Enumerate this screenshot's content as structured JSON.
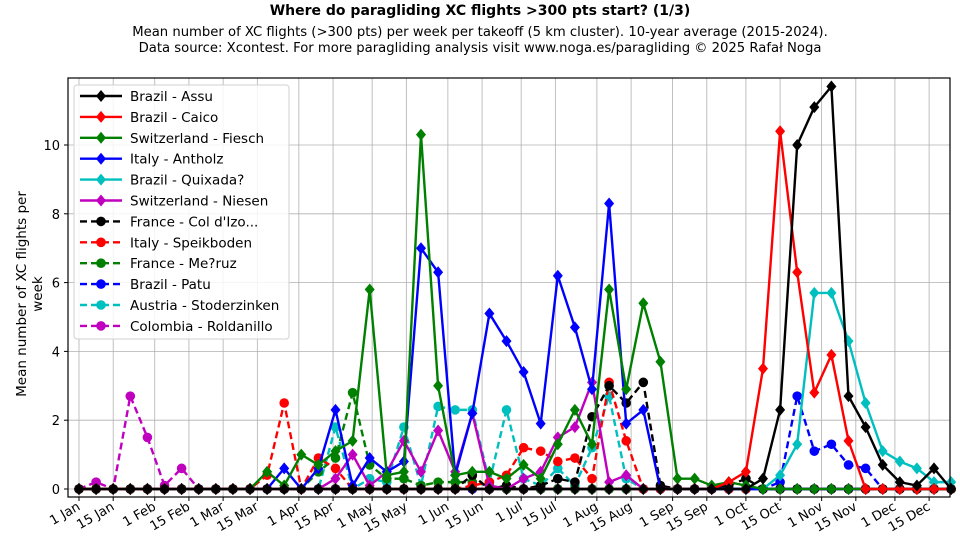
{
  "header": {
    "title": "Where do paragliding XC flights >300 pts start? (1/3)",
    "subtitle1": "Mean number of XC flights (>300 pts) per week per takeoff (5 km cluster). 10-year average (2015-2024).",
    "subtitle2": "Data source: Xcontest. For more paragliding analysis visit www.noga.es/paragliding © 2025 Rafał Noga"
  },
  "chart_data": {
    "type": "line",
    "title": "Where do paragliding XC flights >300 pts start? (1/3)",
    "xlabel": "",
    "ylabel": "Mean number of XC flights per week",
    "ylim": [
      -0.3,
      11.9
    ],
    "yticks": [
      0,
      2,
      4,
      6,
      8,
      10
    ],
    "xtick_labels": [
      "1 Jan",
      "15 Jan",
      "1 Feb",
      "15 Feb",
      "1 Mar",
      "15 Mar",
      "1 Apr",
      "15 Apr",
      "1 May",
      "15 May",
      "1 Jun",
      "15 Jun",
      "1 Jul",
      "15 Jul",
      "1 Aug",
      "15 Aug",
      "1 Sep",
      "15 Sep",
      "1 Oct",
      "15 Oct",
      "1 Nov",
      "15 Nov",
      "1 Dec",
      "15 Dec"
    ],
    "xtick_days": [
      0,
      14,
      31,
      45,
      59,
      73,
      90,
      104,
      120,
      134,
      151,
      165,
      181,
      195,
      212,
      226,
      243,
      257,
      273,
      287,
      304,
      318,
      334,
      348
    ],
    "grid": true,
    "legend_position": "upper left",
    "x_weeks": 52,
    "series": [
      {
        "name": "Brazil - Assu",
        "color": "#000000",
        "style": "solid",
        "marker": "diamond",
        "values": [
          0,
          0,
          0,
          0,
          0,
          0,
          0,
          0,
          0,
          0,
          0,
          0,
          0,
          0,
          0,
          0,
          0,
          0,
          0,
          0,
          0,
          0,
          0,
          0,
          0,
          0,
          0,
          0,
          0,
          0,
          0,
          0,
          0,
          0,
          0,
          0,
          0,
          0,
          0,
          0,
          0.3,
          2.3,
          10.0,
          11.1,
          11.7,
          2.7,
          1.8,
          0.7,
          0.2,
          0.1,
          0.6,
          0.0
        ]
      },
      {
        "name": "Brazil - Caico",
        "color": "#ff0000",
        "style": "solid",
        "marker": "diamond",
        "values": [
          0,
          0,
          0,
          0,
          0,
          0,
          0,
          0,
          0,
          0,
          0,
          0,
          0,
          0,
          0,
          0,
          0,
          0,
          0,
          0,
          0,
          0,
          0,
          0,
          0,
          0,
          0,
          0,
          0,
          0,
          0,
          0,
          0,
          0,
          0,
          0,
          0,
          0,
          0.2,
          0.5,
          3.5,
          10.4,
          6.3,
          2.8,
          3.9,
          1.4,
          0,
          0,
          0,
          0,
          0,
          0
        ]
      },
      {
        "name": "Switzerland - Fiesch",
        "color": "#008000",
        "style": "solid",
        "marker": "diamond",
        "values": [
          0,
          0,
          0,
          0,
          0,
          0,
          0,
          0,
          0,
          0,
          0,
          0.5,
          0.1,
          1.0,
          0.7,
          1.1,
          1.4,
          5.8,
          0.4,
          0.5,
          10.3,
          3.0,
          0.4,
          0.5,
          0.5,
          0.3,
          0.7,
          0.3,
          1.3,
          2.3,
          1.3,
          5.8,
          2.9,
          5.4,
          3.7,
          0.3,
          0.3,
          0.1,
          0.2,
          0.1,
          0,
          0,
          0,
          0,
          0,
          0,
          0,
          0,
          0,
          0,
          0,
          0
        ]
      },
      {
        "name": "Italy - Antholz",
        "color": "#0000ff",
        "style": "solid",
        "marker": "diamond",
        "values": [
          0,
          0,
          0,
          0,
          0,
          0,
          0,
          0,
          0,
          0,
          0,
          0,
          0.6,
          0,
          0.6,
          2.3,
          0.1,
          0.9,
          0.5,
          0.8,
          7.0,
          6.3,
          0.4,
          2.2,
          5.1,
          4.3,
          3.4,
          1.9,
          6.2,
          4.7,
          2.9,
          8.3,
          1.9,
          2.3,
          0,
          0,
          0,
          0,
          0,
          0,
          0,
          0,
          0,
          0,
          0,
          0,
          0,
          0,
          0,
          0,
          0,
          0
        ]
      },
      {
        "name": "Brazil - Quixada?",
        "color": "#00bfbf",
        "style": "solid",
        "marker": "diamond",
        "values": [
          0,
          0,
          0,
          0,
          0,
          0,
          0,
          0,
          0,
          0,
          0,
          0,
          0,
          0,
          0,
          0,
          0,
          0,
          0,
          0,
          0,
          0,
          0,
          0,
          0,
          0,
          0,
          0,
          0,
          0,
          0,
          0,
          0,
          0,
          0,
          0,
          0,
          0,
          0,
          0,
          0,
          0.4,
          1.3,
          5.7,
          5.7,
          4.3,
          2.5,
          1.1,
          0.8,
          0.6,
          0.2,
          0.2
        ]
      },
      {
        "name": "Switzerland - Niesen",
        "color": "#bf00bf",
        "style": "solid",
        "marker": "diamond",
        "values": [
          0,
          0,
          0,
          0,
          0,
          0,
          0,
          0,
          0,
          0,
          0,
          0,
          0,
          0,
          0,
          0.3,
          1.0,
          0.1,
          0.5,
          1.4,
          0.5,
          1.7,
          0.5,
          2.2,
          0.1,
          0,
          0.3,
          0.5,
          1.5,
          1.8,
          3.1,
          0.2,
          0.4,
          0,
          0,
          0,
          0,
          0,
          0,
          0,
          0,
          0,
          0,
          0,
          0,
          0,
          0,
          0,
          0,
          0,
          0,
          0
        ]
      },
      {
        "name": "France - Col d'Izo...",
        "color": "#000000",
        "style": "dashed",
        "marker": "circle",
        "values": [
          0,
          0,
          0,
          0,
          0,
          0,
          0,
          0,
          0,
          0,
          0,
          0,
          0,
          0,
          0,
          0,
          0,
          0,
          0,
          0,
          0,
          0,
          0,
          0.4,
          0,
          0.1,
          0,
          0.1,
          0.3,
          0.2,
          2.1,
          3.0,
          2.5,
          3.1,
          0.1,
          0,
          0,
          0,
          0.1,
          0.3,
          0,
          0,
          0,
          0,
          0,
          0,
          0,
          0,
          0,
          0,
          0,
          0
        ]
      },
      {
        "name": "Italy - Speikboden",
        "color": "#ff0000",
        "style": "dashed",
        "marker": "circle",
        "values": [
          0,
          0,
          0,
          0,
          0,
          0,
          0,
          0,
          0,
          0,
          0,
          0.4,
          2.5,
          0,
          0.9,
          0.6,
          0,
          0,
          0,
          0,
          0,
          0,
          0,
          0.1,
          0.2,
          0.4,
          1.2,
          1.1,
          0.8,
          0.9,
          0.3,
          3.1,
          1.4,
          0,
          0,
          0,
          0,
          0,
          0,
          0,
          0,
          0,
          0,
          0,
          0,
          0,
          0,
          0,
          0,
          0,
          0,
          0
        ]
      },
      {
        "name": "France - Me?ruz",
        "color": "#008000",
        "style": "dashed",
        "marker": "circle",
        "values": [
          0,
          0,
          0,
          0,
          0,
          0,
          0,
          0,
          0,
          0,
          0,
          0,
          0,
          0,
          0.5,
          0.9,
          2.8,
          0.7,
          0.3,
          0.3,
          0.1,
          0.2,
          0.2,
          0.2,
          0.1,
          0,
          0,
          0,
          0,
          0,
          0,
          0,
          0,
          0,
          0,
          0,
          0,
          0,
          0,
          0,
          0,
          0,
          0,
          0,
          0,
          0,
          0,
          0,
          0,
          0,
          0,
          0
        ]
      },
      {
        "name": "Brazil - Patu",
        "color": "#0000ff",
        "style": "dashed",
        "marker": "circle",
        "values": [
          0,
          0,
          0,
          0,
          0,
          0,
          0,
          0,
          0,
          0,
          0,
          0,
          0,
          0,
          0,
          0,
          0,
          0,
          0,
          0,
          0,
          0,
          0,
          0,
          0,
          0,
          0,
          0,
          0,
          0,
          0,
          0,
          0,
          0,
          0,
          0,
          0,
          0,
          0,
          0,
          0,
          0.2,
          2.7,
          1.1,
          1.3,
          0.7,
          0.6,
          0,
          0,
          0,
          0,
          0
        ]
      },
      {
        "name": "Austria - Stoderzinken",
        "color": "#00bfbf",
        "style": "dashed",
        "marker": "circle",
        "values": [
          0,
          0,
          0,
          0,
          0,
          0,
          0,
          0,
          0,
          0,
          0,
          0,
          0,
          0,
          0,
          1.8,
          0,
          0.3,
          0.2,
          1.8,
          0.1,
          2.4,
          2.3,
          2.3,
          0.2,
          2.3,
          0.3,
          0.1,
          0.6,
          0.1,
          1.2,
          2.7,
          0.3,
          0,
          0,
          0,
          0,
          0,
          0,
          0,
          0,
          0,
          0,
          0,
          0,
          0,
          0,
          0,
          0,
          0,
          0,
          0
        ]
      },
      {
        "name": "Colombia - Roldanillo",
        "color": "#bf00bf",
        "style": "dashed",
        "marker": "circle",
        "values": [
          0,
          0.2,
          0,
          2.7,
          1.5,
          0.1,
          0.6,
          0,
          0,
          0,
          0,
          0,
          0,
          0,
          0,
          0,
          0,
          0,
          0,
          0,
          0,
          0,
          0,
          0,
          0,
          0,
          0,
          0,
          0,
          0,
          0,
          0,
          0,
          0,
          0,
          0,
          0,
          0,
          0,
          0,
          0,
          0,
          0,
          0,
          0,
          0,
          0,
          0,
          0,
          0,
          0,
          0
        ]
      }
    ]
  }
}
